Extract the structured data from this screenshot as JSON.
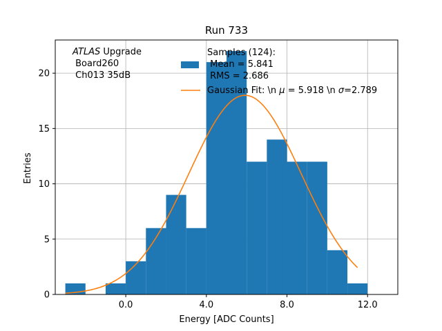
{
  "chart_data": {
    "type": "histogram",
    "title": "Run 733",
    "xlabel": "Energy [ADC Counts]",
    "ylabel": "Entries",
    "xlim": [
      -3.5,
      13.5
    ],
    "ylim": [
      0,
      23
    ],
    "xticks": [
      0,
      4,
      8,
      12
    ],
    "xtick_labels": [
      "0.0",
      "4.0",
      "8.0",
      "12.0"
    ],
    "yticks": [
      0,
      5,
      10,
      15,
      20
    ],
    "ytick_labels": [
      "0",
      "5",
      "10",
      "15",
      "20"
    ],
    "grid": true,
    "bins": {
      "edges": [
        -3,
        -2,
        -1,
        0,
        1,
        2,
        3,
        4,
        5,
        6,
        7,
        8,
        9,
        10,
        11,
        12
      ],
      "counts": [
        1,
        0,
        1,
        3,
        6,
        9,
        6,
        21,
        22,
        12,
        14,
        12,
        12,
        4,
        1
      ],
      "color": "#1f77b4"
    },
    "fit": {
      "label": "Gaussian Fit: \\n $\\mu$ = 5.918 \\n $\\sigma$=2.789",
      "label_parts": [
        "Gaussian Fit: \\n ",
        "μ",
        " = 5.918 \\n ",
        "σ",
        "=2.789"
      ],
      "mu": 5.918,
      "sigma": 2.789,
      "amplitude": 18.0,
      "x_range": [
        -3.0,
        11.5
      ],
      "color": "#ff7f0e"
    },
    "legend": {
      "position": "top-center",
      "samples_lines": [
        "Samples (124):",
        " Mean = 5.841",
        " RMS = 2.686"
      ]
    },
    "annotation": {
      "position": "top-left",
      "italic": "ATLAS",
      "first_rest": " Upgrade",
      "lines": [
        " Board260",
        " Ch013 35dB"
      ]
    }
  }
}
